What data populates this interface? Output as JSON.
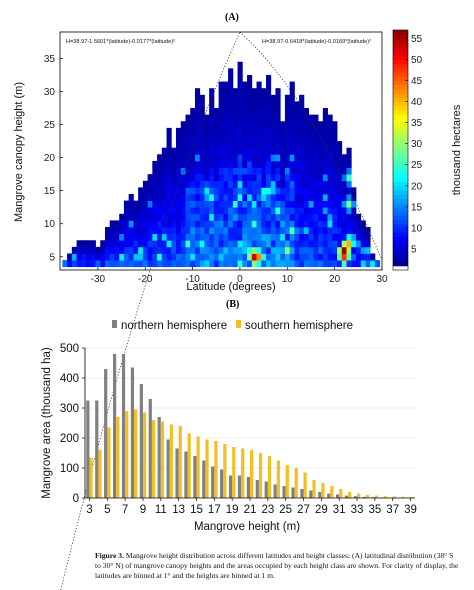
{
  "panel_a_label": "(A)",
  "panel_b_label": "(B)",
  "caption": {
    "prefix": "Figure 3.",
    "text": " Mangrove height distribution across different latitudes and height classes: (A) latitudinal distribution (38° S to 30° N) of mangrove canopy heights and the areas occupied by each height class are shown. For clarity of display, the latitudes are binned at 1° and the heights are binned at 1 m."
  },
  "chart_data": [
    {
      "type": "heatmap",
      "xlabel": "Latitude (degrees)",
      "ylabel": "Mangrove canopy height (m)",
      "colorbar_label": "thousand hectares",
      "xticks": [
        "-30",
        "-20",
        "-10",
        "0",
        "10",
        "20",
        "30"
      ],
      "yticks": [
        "5",
        "10",
        "15",
        "20",
        "25",
        "30",
        "35"
      ],
      "colorbar_ticks": [
        "5",
        "10",
        "15",
        "20",
        "25",
        "30",
        "35",
        "40",
        "45",
        "50",
        "55"
      ],
      "xlim": [
        -38,
        30
      ],
      "ylim": [
        3,
        39
      ],
      "clim": [
        0,
        57
      ],
      "annotations": [
        "H=38.97-1.5601*(latitude)-0.0177*(latitude)²",
        "H=38.97-0.6418*(latitude)-0.0169*(latitude)²"
      ],
      "envelope": {
        "south": {
          "a": 38.97,
          "b": -1.5601,
          "c": -0.0177
        },
        "north": {
          "a": 38.97,
          "b": -0.6418,
          "c": -0.0169
        }
      },
      "column_top_heights": {
        "lat": [
          -37,
          -36,
          -35,
          -34,
          -33,
          -32,
          -31,
          -30,
          -29,
          -28,
          -27,
          -26,
          -25,
          -24,
          -23,
          -22,
          -21,
          -20,
          -19,
          -18,
          -17,
          -16,
          -15,
          -14,
          -13,
          -12,
          -11,
          -10,
          -9,
          -8,
          -7,
          -6,
          -5,
          -4,
          -3,
          -2,
          -1,
          0,
          1,
          2,
          3,
          4,
          5,
          6,
          7,
          8,
          9,
          10,
          11,
          12,
          13,
          14,
          15,
          16,
          17,
          18,
          19,
          20,
          21,
          22,
          23,
          24,
          25,
          26,
          27,
          28,
          29
        ],
        "top": [
          4,
          5,
          6,
          7,
          7,
          7,
          7,
          6,
          7,
          9,
          10,
          10,
          11,
          13,
          14,
          13,
          15,
          16,
          17,
          19,
          20,
          21,
          24,
          21,
          24,
          25,
          26,
          27,
          30,
          29,
          26,
          30,
          27,
          31,
          31,
          33,
          30,
          34,
          31,
          32,
          30,
          31,
          30,
          32,
          29,
          30,
          25,
          29,
          31,
          28,
          29,
          27,
          26,
          26,
          25,
          27,
          26,
          25,
          22,
          20,
          21,
          15,
          11,
          10,
          9,
          5,
          4
        ]
      },
      "hotspots": [
        {
          "lat": 3,
          "height": 5,
          "value": 52
        },
        {
          "lat": 4,
          "height": 5,
          "value": 42
        },
        {
          "lat": 10,
          "height": 6,
          "value": 30
        },
        {
          "lat": 22,
          "height": 6,
          "value": 55
        },
        {
          "lat": 22,
          "height": 5,
          "value": 47
        },
        {
          "lat": 23,
          "height": 7,
          "value": 40
        },
        {
          "lat": -6,
          "height": 14,
          "value": 22
        },
        {
          "lat": -7,
          "height": 15,
          "value": 20
        },
        {
          "lat": 8,
          "height": 12,
          "value": 24
        },
        {
          "lat": 11,
          "height": 9,
          "value": 26
        },
        {
          "lat": 3,
          "height": 10,
          "value": 24
        },
        {
          "lat": 23,
          "height": 13,
          "value": 28
        },
        {
          "lat": 23,
          "height": 17,
          "value": 25
        }
      ]
    },
    {
      "type": "bar",
      "xlabel": "Mangrove height (m)",
      "ylabel": "Mangrove area (thousand ha)",
      "ylim": [
        0,
        500
      ],
      "yticks": [
        "0",
        "100",
        "200",
        "300",
        "400",
        "500"
      ],
      "xticks": [
        "3",
        "5",
        "7",
        "9",
        "11",
        "13",
        "15",
        "17",
        "19",
        "21",
        "23",
        "25",
        "27",
        "29",
        "31",
        "33",
        "35",
        "37",
        "39"
      ],
      "categories": [
        3,
        4,
        5,
        6,
        7,
        8,
        9,
        10,
        11,
        12,
        13,
        14,
        15,
        16,
        17,
        18,
        19,
        20,
        21,
        22,
        23,
        24,
        25,
        26,
        27,
        28,
        29,
        30,
        31,
        32,
        33,
        34,
        35,
        36,
        37,
        38,
        39
      ],
      "legend_position": "top",
      "series": [
        {
          "name": "northern hemisphere",
          "color": "#808080",
          "values": [
            325,
            325,
            430,
            480,
            480,
            435,
            380,
            330,
            270,
            195,
            165,
            155,
            140,
            125,
            105,
            95,
            75,
            75,
            70,
            60,
            55,
            45,
            40,
            35,
            30,
            25,
            20,
            15,
            12,
            8,
            6,
            4,
            3,
            2,
            1,
            1,
            1
          ]
        },
        {
          "name": "southern hemisphere",
          "color": "#f2c024",
          "values": [
            135,
            160,
            235,
            270,
            290,
            295,
            285,
            260,
            255,
            245,
            240,
            215,
            205,
            195,
            190,
            180,
            170,
            165,
            160,
            150,
            140,
            125,
            110,
            100,
            85,
            60,
            50,
            40,
            30,
            20,
            15,
            10,
            8,
            6,
            5,
            4,
            3
          ]
        }
      ]
    }
  ]
}
